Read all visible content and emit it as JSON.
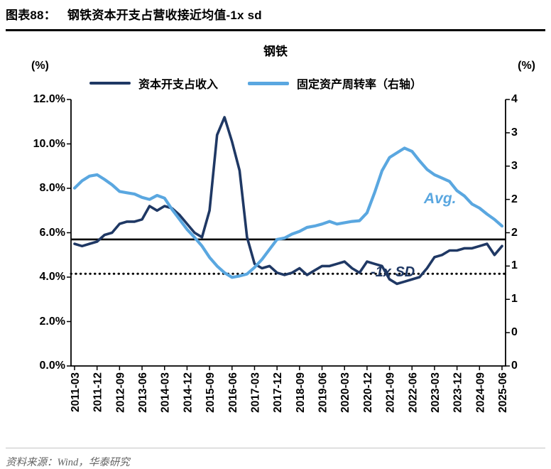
{
  "header": {
    "tag": "图表88：",
    "title": "钢铁资本开支占营收接近均值-1x sd"
  },
  "footer": {
    "source": "资料来源：Wind，华泰研究"
  },
  "chart_data": {
    "type": "line",
    "title": "钢铁",
    "legend_position": "top",
    "grid": false,
    "left_axis": {
      "unit": "(%)",
      "min": 0,
      "max": 12,
      "ticks": [
        0,
        2,
        4,
        6,
        8,
        10,
        12
      ],
      "tick_labels": [
        "0.0%",
        "2.0%",
        "4.0%",
        "6.0%",
        "8.0%",
        "10.0%",
        "12.0%"
      ]
    },
    "right_axis": {
      "unit": "(%)",
      "min": 0,
      "max": 4,
      "ticks": [
        0,
        0.5,
        1,
        1.5,
        2,
        2.5,
        3,
        3.5,
        4
      ],
      "tick_labels": [
        "0",
        "0",
        "1",
        "1",
        "2",
        "2",
        "3",
        "3",
        "4"
      ]
    },
    "x": [
      "2011-03",
      "2011-06",
      "2011-09",
      "2011-12",
      "2012-03",
      "2012-06",
      "2012-09",
      "2012-12",
      "2013-03",
      "2013-06",
      "2013-09",
      "2013-12",
      "2014-03",
      "2014-06",
      "2014-09",
      "2014-12",
      "2015-03",
      "2015-06",
      "2015-09",
      "2015-12",
      "2016-03",
      "2016-06",
      "2016-09",
      "2016-12",
      "2017-03",
      "2017-06",
      "2017-09",
      "2017-12",
      "2018-03",
      "2018-06",
      "2018-09",
      "2018-12",
      "2019-03",
      "2019-06",
      "2019-09",
      "2019-12",
      "2020-03",
      "2020-06",
      "2020-09",
      "2020-12",
      "2021-03",
      "2021-06",
      "2021-09",
      "2021-12",
      "2022-03",
      "2022-06",
      "2022-09",
      "2022-12",
      "2023-03",
      "2023-06",
      "2023-09",
      "2023-12",
      "2024-03",
      "2024-06",
      "2024-09",
      "2024-12",
      "2025-03",
      "2025-06"
    ],
    "x_tick_labels": [
      "2011-03",
      "2011-12",
      "2012-09",
      "2013-06",
      "2014-03",
      "2014-12",
      "2015-09",
      "2016-06",
      "2017-03",
      "2017-12",
      "2018-09",
      "2019-06",
      "2020-03",
      "2020-12",
      "2021-09",
      "2022-06",
      "2023-03",
      "2023-12",
      "2024-09",
      "2025-06"
    ],
    "series": [
      {
        "name": "资本开支占收入",
        "axis": "left",
        "color": "#1f3864",
        "values": [
          5.5,
          5.4,
          5.5,
          5.6,
          5.9,
          6.0,
          6.4,
          6.5,
          6.5,
          6.6,
          7.2,
          7.0,
          7.2,
          7.1,
          6.8,
          6.4,
          6.0,
          5.8,
          7.0,
          10.4,
          11.2,
          10.1,
          8.8,
          5.8,
          4.6,
          4.4,
          4.5,
          4.2,
          4.1,
          4.2,
          4.4,
          4.1,
          4.3,
          4.5,
          4.5,
          4.6,
          4.7,
          4.4,
          4.2,
          4.7,
          4.6,
          4.5,
          3.9,
          3.7,
          3.8,
          3.9,
          4.0,
          4.4,
          4.9,
          5.0,
          5.2,
          5.2,
          5.3,
          5.3,
          5.4,
          5.5,
          5.0,
          5.4
        ]
      },
      {
        "name": "固定资产周转率（右轴）",
        "axis": "right",
        "color": "#5aa7e0",
        "values": [
          2.67,
          2.78,
          2.85,
          2.87,
          2.8,
          2.72,
          2.62,
          2.6,
          2.58,
          2.53,
          2.5,
          2.56,
          2.52,
          2.35,
          2.2,
          2.05,
          1.93,
          1.8,
          1.63,
          1.5,
          1.4,
          1.33,
          1.35,
          1.38,
          1.48,
          1.6,
          1.75,
          1.9,
          1.92,
          1.98,
          2.02,
          2.08,
          2.1,
          2.13,
          2.17,
          2.13,
          2.15,
          2.17,
          2.18,
          2.3,
          2.6,
          2.93,
          3.13,
          3.2,
          3.27,
          3.22,
          3.08,
          2.95,
          2.87,
          2.82,
          2.77,
          2.63,
          2.55,
          2.43,
          2.37,
          2.28,
          2.2,
          2.1
        ]
      }
    ],
    "reference_lines": [
      {
        "name": "average",
        "axis": "left",
        "value": 5.7,
        "style": "solid",
        "color": "#000000"
      },
      {
        "name": "minus-1sd",
        "axis": "left",
        "value": 4.15,
        "style": "dotted",
        "color": "#000000"
      }
    ],
    "annotations": [
      {
        "text": "Avg.",
        "color": "#5aa7e0"
      },
      {
        "text": "-1x SD",
        "color": "#1f3864"
      }
    ]
  }
}
